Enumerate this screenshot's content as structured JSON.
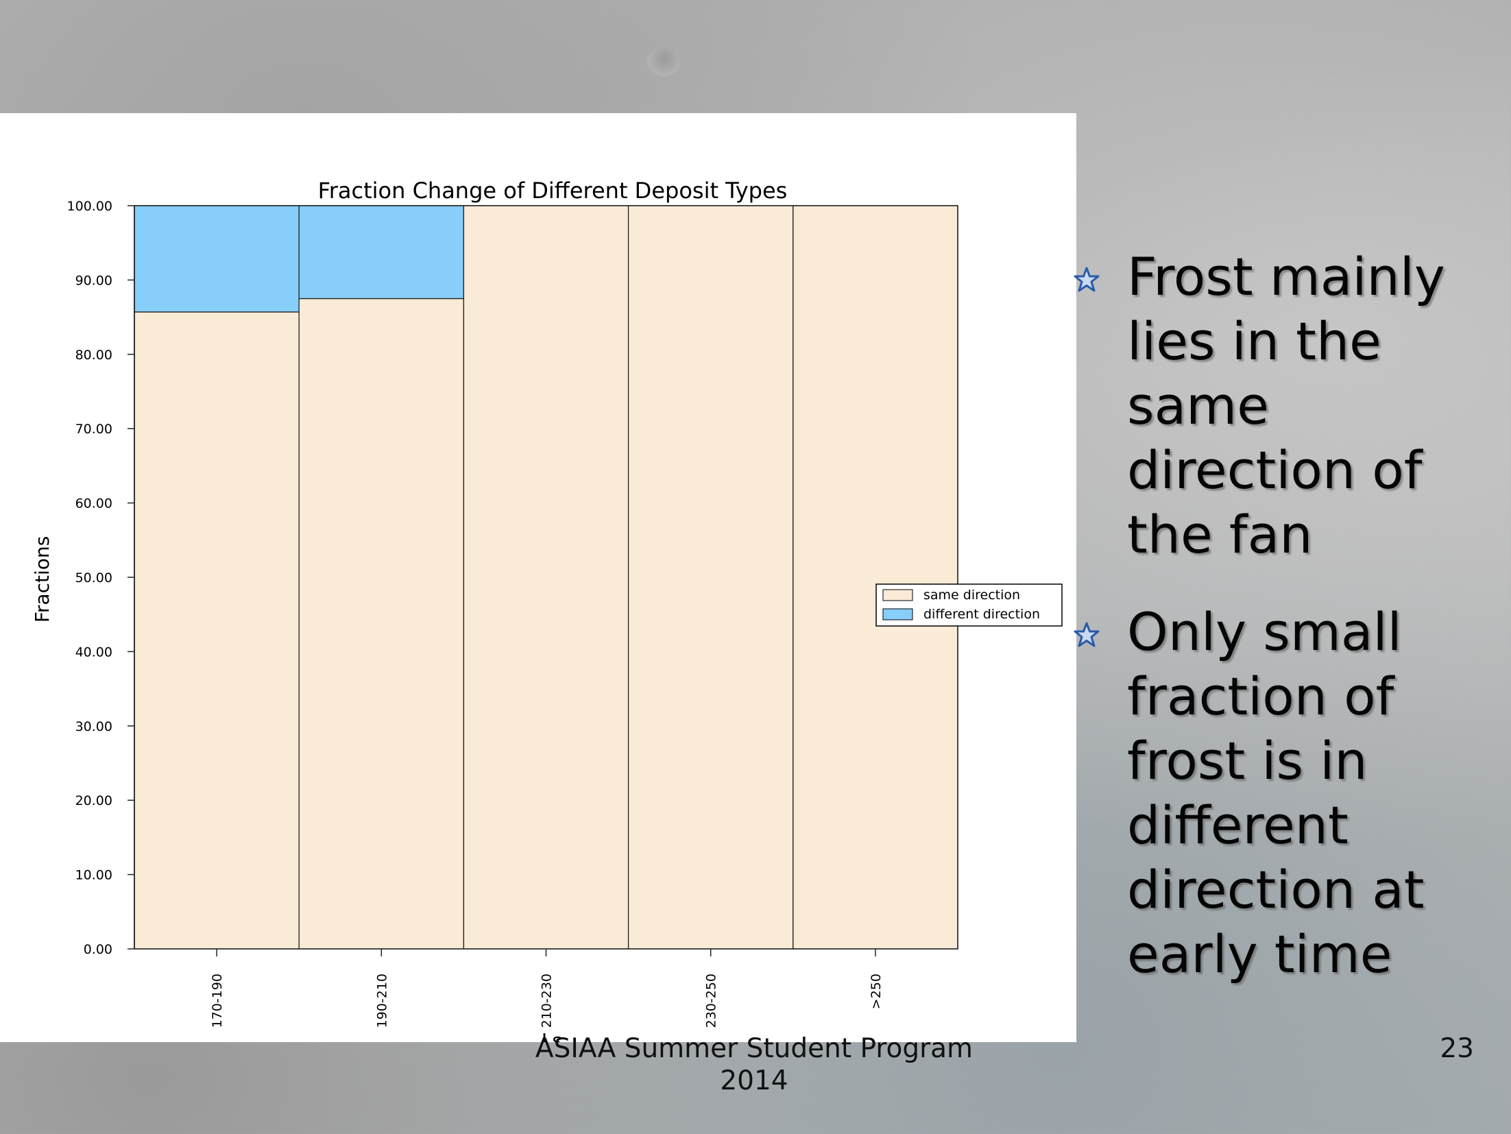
{
  "chart_data": {
    "type": "bar",
    "stacked": true,
    "title": "Fraction Change of Different Deposit Types",
    "xlabel": "Ls",
    "ylabel": "Fractions",
    "categories": [
      "170-190",
      "190-210",
      "210-230",
      "230-250",
      ">250"
    ],
    "series": [
      {
        "name": "same direction",
        "color": "#FAEBD7",
        "values": [
          85.7,
          87.5,
          100,
          100,
          100
        ]
      },
      {
        "name": "different direction",
        "color": "#87CEFA",
        "values": [
          14.3,
          12.5,
          0,
          0,
          0
        ]
      }
    ],
    "ylim": [
      0,
      100
    ],
    "yticks": [
      "0.00",
      "10.00",
      "20.00",
      "30.00",
      "40.00",
      "50.00",
      "60.00",
      "70.00",
      "80.00",
      "90.00",
      "100.00"
    ],
    "grid": false,
    "legend_position": "right"
  },
  "bullets": [
    {
      "text": "Frost mainly lies in the same direction of the fan",
      "icon": "star-icon"
    },
    {
      "text": "Only small fraction of frost is in different direction at early time",
      "icon": "star-icon"
    }
  ],
  "footer": {
    "text": "ASIAA Summer Student Program 2014"
  },
  "page_number": "23"
}
